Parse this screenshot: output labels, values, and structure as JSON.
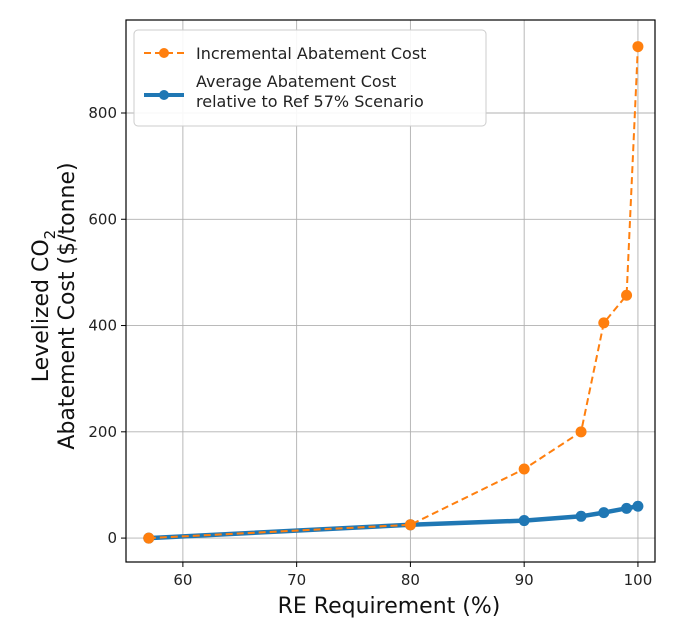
{
  "chart_data": {
    "type": "line",
    "xlabel": "RE Requirement (%)",
    "ylabel_line1_main": "Levelized CO",
    "ylabel_line1_sub": "2",
    "ylabel_line2": "Abatement Cost ($/tonne)",
    "xlim": [
      55,
      101.5
    ],
    "ylim": [
      -45,
      975
    ],
    "xticks": [
      60,
      70,
      80,
      90,
      100
    ],
    "yticks": [
      0,
      200,
      400,
      600,
      800
    ],
    "grid": true,
    "legend_position": "top-left",
    "series": [
      {
        "name": "Incremental Abatement Cost",
        "color": "#ff7f0e",
        "style": "dashed",
        "x": [
          57,
          80,
          90,
          95,
          97,
          99,
          100
        ],
        "y": [
          0,
          25,
          130,
          200,
          405,
          457,
          925
        ]
      },
      {
        "name_line1": "Average Abatement Cost",
        "name_line2": "relative to Ref 57% Scenario",
        "color": "#1f77b4",
        "style": "solid",
        "x": [
          57,
          80,
          90,
          95,
          97,
          99,
          100
        ],
        "y": [
          0,
          25,
          33,
          41,
          48,
          56,
          60
        ]
      }
    ]
  }
}
